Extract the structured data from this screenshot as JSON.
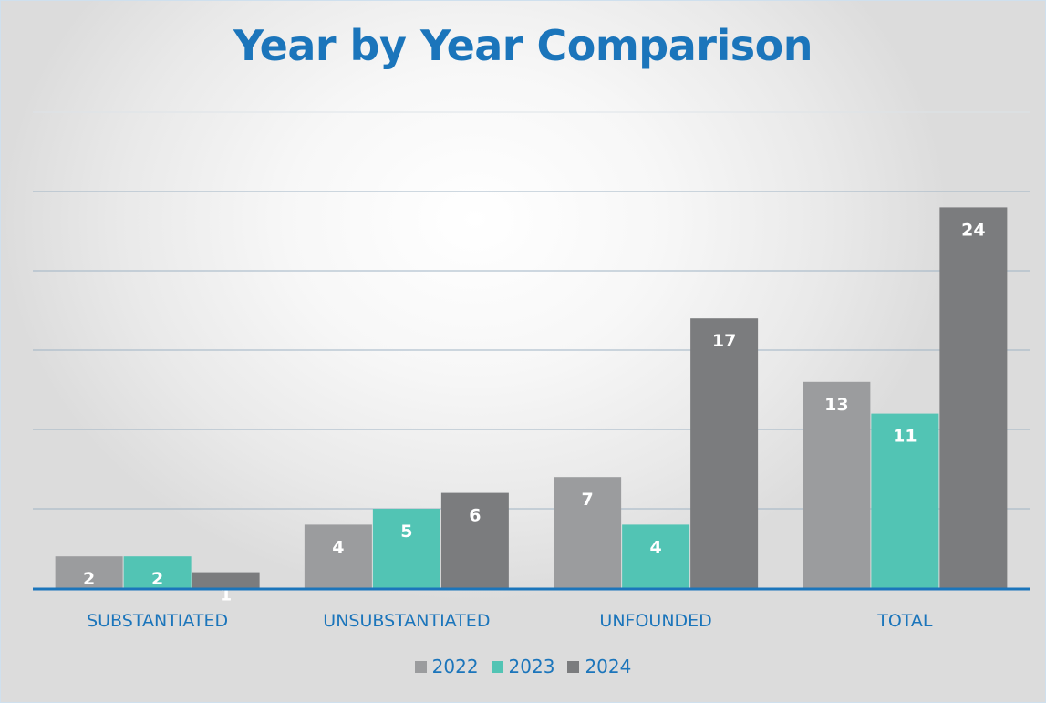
{
  "chart_data": {
    "type": "bar",
    "title": "Year by Year Comparison",
    "categories": [
      "SUBSTANTIATED",
      "UNSUBSTANTIATED",
      "UNFOUNDED",
      "TOTAL"
    ],
    "series": [
      {
        "name": "2022",
        "values": [
          2,
          4,
          7,
          13
        ],
        "color": "#9b9c9e"
      },
      {
        "name": "2023",
        "values": [
          2,
          5,
          4,
          11
        ],
        "color": "#52c4b4"
      },
      {
        "name": "2024",
        "values": [
          1,
          6,
          17,
          24
        ],
        "color": "#7b7c7e"
      }
    ],
    "ylim": [
      0,
      30
    ],
    "grid": true,
    "legend_position": "bottom",
    "accent_color": "#1b75bb"
  }
}
